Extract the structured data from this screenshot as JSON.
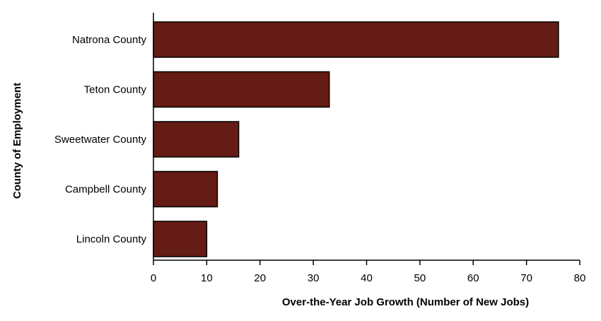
{
  "chart_data": {
    "type": "bar",
    "orientation": "horizontal",
    "categories": [
      "Natrona County",
      "Teton County",
      "Sweetwater County",
      "Campbell County",
      "Lincoln County"
    ],
    "values": [
      76,
      33,
      16,
      12,
      10
    ],
    "title": "",
    "xlabel": "Over-the-Year Job Growth (Number of New Jobs)",
    "ylabel": "County of Employment",
    "xlim": [
      0,
      80
    ],
    "xticks": [
      0,
      10,
      20,
      30,
      40,
      50,
      60,
      70,
      80
    ],
    "grid": false,
    "legend": "none",
    "bar_color": "#641C14"
  }
}
